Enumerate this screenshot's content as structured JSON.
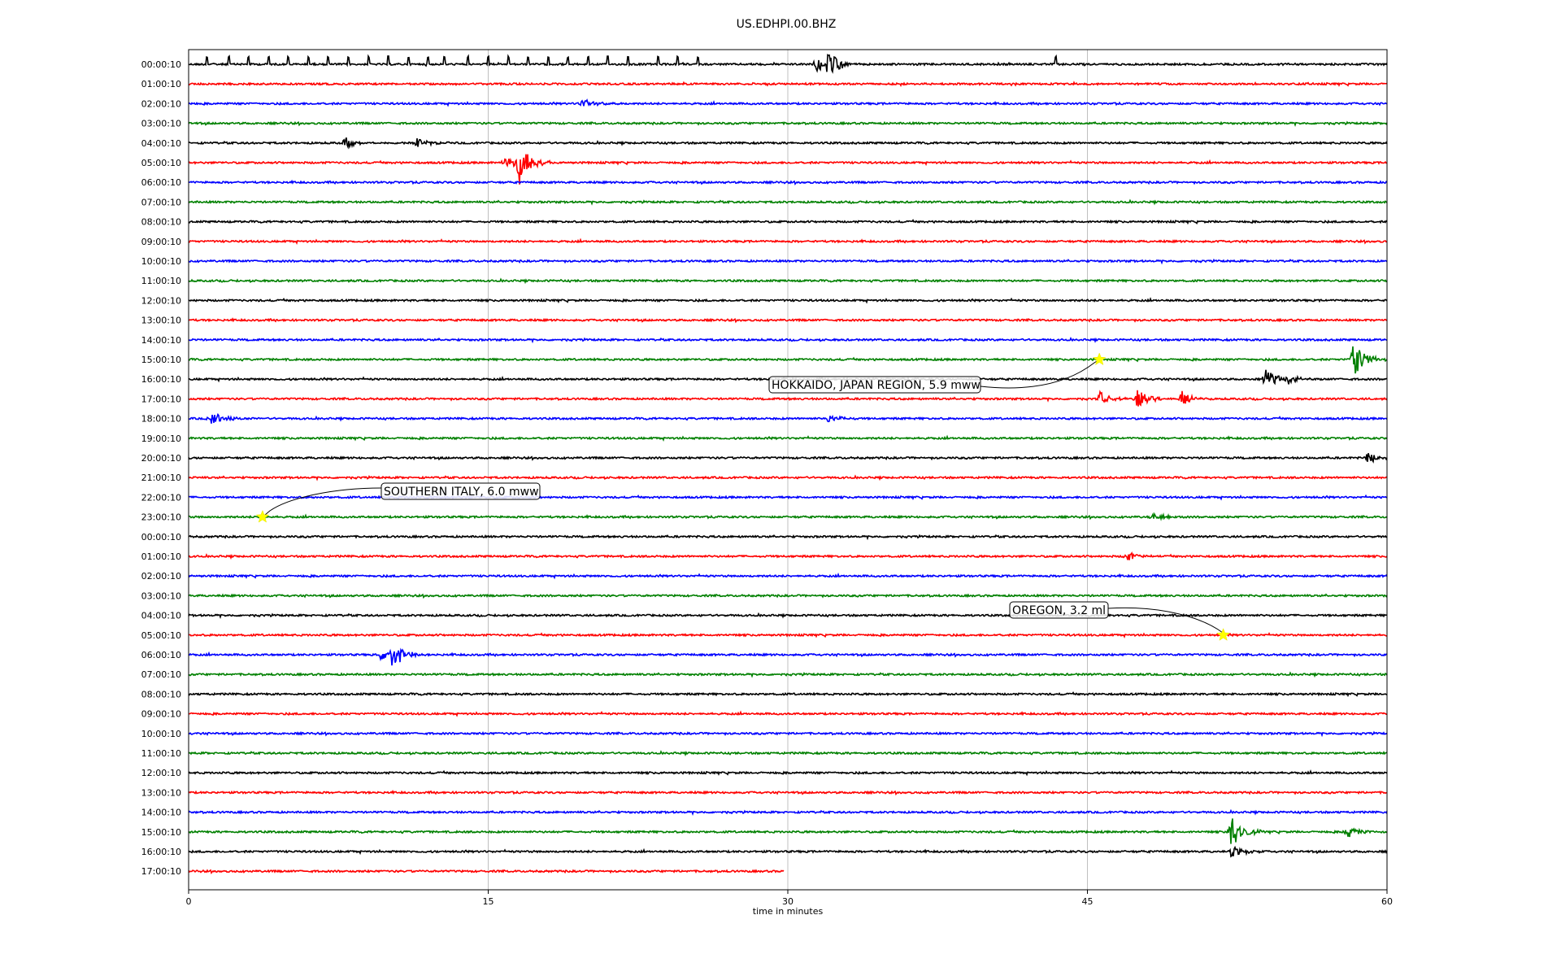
{
  "chart_data": {
    "type": "line",
    "title": "US.EDHPI.00.BHZ",
    "xlabel": "time in minutes",
    "ylabel": "",
    "xlim": [
      0,
      60
    ],
    "xticks": [
      "0",
      "15",
      "30",
      "45",
      "60"
    ],
    "xtick_values": [
      0,
      15,
      30,
      45,
      60
    ],
    "grid": "vertical",
    "trace_colors": [
      "#000000",
      "#ff0000",
      "#0000ff",
      "#008000"
    ],
    "row_labels": [
      "00:00:10",
      "01:00:10",
      "02:00:10",
      "03:00:10",
      "04:00:10",
      "05:00:10",
      "06:00:10",
      "07:00:10",
      "08:00:10",
      "09:00:10",
      "10:00:10",
      "11:00:10",
      "12:00:10",
      "13:00:10",
      "14:00:10",
      "15:00:10",
      "16:00:10",
      "17:00:10",
      "18:00:10",
      "19:00:10",
      "20:00:10",
      "21:00:10",
      "22:00:10",
      "23:00:10",
      "00:00:10",
      "01:00:10",
      "02:00:10",
      "03:00:10",
      "04:00:10",
      "05:00:10",
      "06:00:10",
      "07:00:10",
      "08:00:10",
      "09:00:10",
      "10:00:10",
      "11:00:10",
      "12:00:10",
      "13:00:10",
      "14:00:10",
      "15:00:10",
      "16:00:10",
      "17:00:10"
    ],
    "last_row_end_minute": 29.8,
    "events": [
      {
        "label": "HOKKAIDO, JAPAN REGION, 5.9 mww",
        "row": 15,
        "minute": 45.6
      },
      {
        "label": "SOUTHERN ITALY, 6.0 mww",
        "row": 23,
        "minute": 3.7
      },
      {
        "label": "OREGON, 3.2 ml",
        "row": 29,
        "minute": 51.8
      }
    ],
    "bursts": [
      {
        "row": 0,
        "minute": 32.0,
        "amp": 3.2
      },
      {
        "row": 0,
        "minute": 31.4,
        "amp": 1.8
      },
      {
        "row": 2,
        "minute": 19.7,
        "amp": 1.2
      },
      {
        "row": 4,
        "minute": 7.8,
        "amp": 1.2
      },
      {
        "row": 4,
        "minute": 11.4,
        "amp": 1.1
      },
      {
        "row": 5,
        "minute": 15.8,
        "amp": 1.4
      },
      {
        "row": 5,
        "minute": 16.5,
        "amp": 5.0
      },
      {
        "row": 15,
        "minute": 58.3,
        "amp": 4.2
      },
      {
        "row": 16,
        "minute": 53.9,
        "amp": 2.4
      },
      {
        "row": 16,
        "minute": 55.0,
        "amp": 1.2
      },
      {
        "row": 17,
        "minute": 45.6,
        "amp": 1.6
      },
      {
        "row": 17,
        "minute": 47.5,
        "amp": 2.0
      },
      {
        "row": 17,
        "minute": 49.7,
        "amp": 2.0
      },
      {
        "row": 18,
        "minute": 1.1,
        "amp": 1.5
      },
      {
        "row": 18,
        "minute": 32.0,
        "amp": 1.2
      },
      {
        "row": 20,
        "minute": 59.0,
        "amp": 1.2
      },
      {
        "row": 23,
        "minute": 48.3,
        "amp": 1.0
      },
      {
        "row": 25,
        "minute": 47.0,
        "amp": 1.0
      },
      {
        "row": 30,
        "minute": 10.2,
        "amp": 3.6
      },
      {
        "row": 30,
        "minute": 9.6,
        "amp": 1.2
      },
      {
        "row": 39,
        "minute": 52.2,
        "amp": 4.2
      },
      {
        "row": 39,
        "minute": 58.0,
        "amp": 1.2
      },
      {
        "row": 40,
        "minute": 52.2,
        "amp": 1.5
      }
    ],
    "ticks": [
      {
        "row": 0,
        "minutes": [
          0.9,
          2.0,
          3.0,
          4.0,
          5.0,
          6.0,
          7.0,
          8.0,
          9.0,
          10.0,
          11.0,
          12.0,
          12.8,
          14.0,
          15.0,
          16.0,
          17.0,
          18.0,
          19.0,
          20.0,
          21.0,
          22.0,
          23.5,
          24.5,
          25.5,
          43.4
        ]
      }
    ]
  }
}
